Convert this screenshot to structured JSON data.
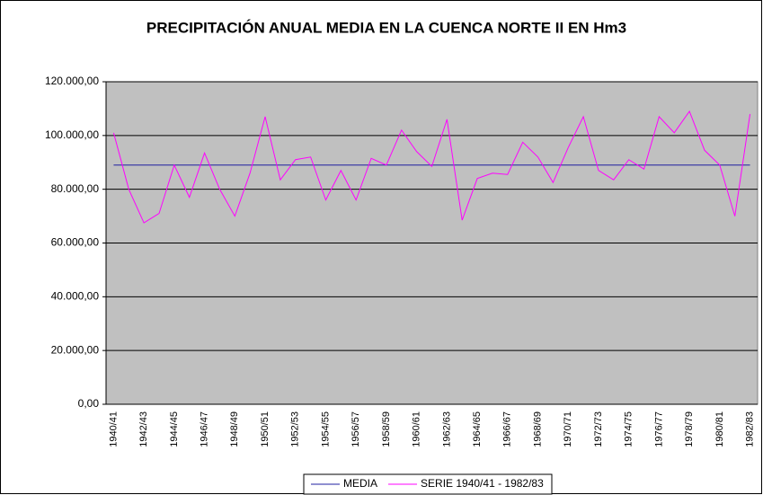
{
  "chart_data": {
    "type": "line",
    "title": "PRECIPITACIÓN ANUAL MEDIA EN LA CUENCA NORTE II EN Hm3",
    "categories": [
      "1940/41",
      null,
      "1942/43",
      null,
      "1944/45",
      null,
      "1946/47",
      null,
      "1948/49",
      null,
      "1950/51",
      null,
      "1952/53",
      null,
      "1954/55",
      null,
      "1956/57",
      null,
      "1958/59",
      null,
      "1960/61",
      null,
      "1962/63",
      null,
      "1964/65",
      null,
      "1966/67",
      null,
      "1968/69",
      null,
      "1970/71",
      null,
      "1972/73",
      null,
      "1974/75",
      null,
      "1976/77",
      null,
      "1978/79",
      null,
      "1980/81",
      null,
      "1982/83"
    ],
    "series": [
      {
        "name": "MEDIA",
        "color": "#1f1fa0",
        "values": [
          89000,
          89000,
          89000,
          89000,
          89000,
          89000,
          89000,
          89000,
          89000,
          89000,
          89000,
          89000,
          89000,
          89000,
          89000,
          89000,
          89000,
          89000,
          89000,
          89000,
          89000,
          89000,
          89000,
          89000,
          89000,
          89000,
          89000,
          89000,
          89000,
          89000,
          89000,
          89000,
          89000,
          89000,
          89000,
          89000,
          89000,
          89000,
          89000,
          89000,
          89000,
          89000,
          89000
        ]
      },
      {
        "name": "SERIE 1940/41 - 1982/83",
        "color": "#ff00ff",
        "values": [
          101000,
          80000,
          67500,
          71000,
          89000,
          77000,
          93500,
          80000,
          70000,
          86000,
          107000,
          83500,
          91000,
          92000,
          76000,
          87000,
          76000,
          91500,
          89000,
          102000,
          94000,
          88500,
          106000,
          68500,
          84000,
          86000,
          85500,
          97500,
          92000,
          82500,
          95500,
          107000,
          87000,
          83500,
          91000,
          87500,
          107000,
          101000,
          109000,
          94500,
          89000,
          70000,
          108000
        ]
      }
    ],
    "ylim": [
      0,
      120000
    ],
    "yticks": [
      {
        "value": 0,
        "label": "0,00"
      },
      {
        "value": 20000,
        "label": "20.000,00"
      },
      {
        "value": 40000,
        "label": "40.000,00"
      },
      {
        "value": 60000,
        "label": "60.000,00"
      },
      {
        "value": 80000,
        "label": "80.000,00"
      },
      {
        "value": 100000,
        "label": "100.000,00"
      },
      {
        "value": 120000,
        "label": "120.000,00"
      }
    ],
    "grid": true,
    "legend": "bottom",
    "plot_background": "#c0c0c0"
  }
}
